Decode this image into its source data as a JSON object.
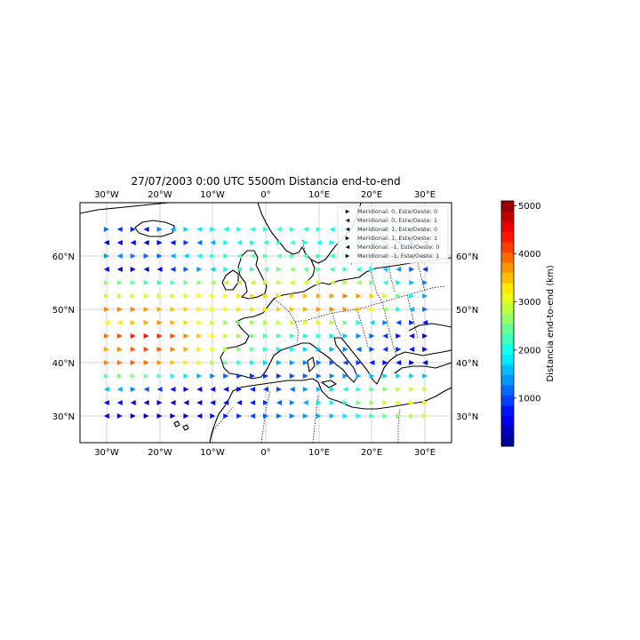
{
  "title": "27/07/2003 0:00 UTC  5500m Distancia end-to-end",
  "lon_ticks": [
    "30°W",
    "20°W",
    "10°W",
    "0°",
    "10°E",
    "20°E",
    "30°E"
  ],
  "lat_ticks": [
    "60°N",
    "50°N",
    "40°N",
    "30°N"
  ],
  "legend": [
    {
      "label": "Meridional: 0, Este/Oeste: 0",
      "marker": "right"
    },
    {
      "label": "Meridional: 0, Este/Oeste: 1",
      "marker": "left"
    },
    {
      "label": "Meridional: 1, Este/Oeste: 0",
      "marker": "left"
    },
    {
      "label": "Meridional: 1, Este/Oeste: 1",
      "marker": "right"
    },
    {
      "label": "Meridional: -1, Este/Oeste: 0",
      "marker": "left"
    },
    {
      "label": "Meridional: -1, Este/Oeste: 1",
      "marker": "right"
    }
  ],
  "colorbar": {
    "label": "Distancia end-to-end (km)",
    "ticks": [
      "1000",
      "2000",
      "3000",
      "4000",
      "5000"
    ],
    "range": [
      0,
      5100
    ],
    "colormap": "jet"
  },
  "extent": {
    "lon": [
      -35,
      35
    ],
    "lat": [
      25,
      70
    ]
  },
  "chart_data": {
    "type": "scatter",
    "marker": "triangle",
    "lon": [
      -30,
      -27.5,
      -25,
      -22.5,
      -20,
      -17.5,
      -15,
      -12.5,
      -10,
      -7.5,
      -5,
      -2.5,
      0,
      2.5,
      5,
      7.5,
      10,
      12.5,
      15,
      17.5,
      20,
      22.5,
      25,
      27.5,
      30
    ],
    "lat": [
      65,
      62.5,
      60,
      57.5,
      55,
      52.5,
      50,
      47.5,
      45,
      42.5,
      40,
      37.5,
      35,
      32.5,
      30
    ],
    "distance_km": [
      [
        1200,
        900,
        800,
        700,
        1300,
        1500,
        1700,
        1800,
        1900,
        2000,
        2100,
        2150,
        2200,
        2200,
        2200,
        2150,
        2100,
        2000,
        2000,
        1900,
        1800,
        1700,
        1600,
        1400,
        1300
      ],
      [
        300,
        500,
        400,
        300,
        500,
        700,
        900,
        1200,
        1500,
        1900,
        2000,
        2100,
        2200,
        2200,
        2200,
        2100,
        2000,
        1900,
        1800,
        1700,
        1600,
        1500,
        1300,
        1100,
        900
      ],
      [
        1400,
        1300,
        1200,
        1100,
        1200,
        1500,
        1700,
        1900,
        2100,
        2200,
        2300,
        2400,
        2400,
        2400,
        2300,
        2300,
        2200,
        2100,
        2000,
        1800,
        1600,
        1400,
        1200,
        1000,
        900
      ],
      [
        600,
        500,
        400,
        500,
        600,
        900,
        1100,
        1400,
        1700,
        2000,
        2200,
        2300,
        2400,
        2500,
        2600,
        2500,
        2400,
        2300,
        2200,
        2100,
        1900,
        1700,
        1400,
        1100,
        900
      ],
      [
        2600,
        2500,
        2400,
        2300,
        2200,
        2300,
        2500,
        2600,
        2700,
        2800,
        2900,
        2900,
        2900,
        2900,
        3000,
        3000,
        3000,
        2900,
        2800,
        2700,
        2500,
        2200,
        1900,
        1600,
        1300
      ],
      [
        2900,
        2900,
        2950,
        3000,
        3000,
        3000,
        3050,
        3100,
        3100,
        3200,
        3300,
        3300,
        3300,
        3400,
        3400,
        3500,
        3600,
        3700,
        3800,
        3700,
        3400,
        3000,
        2500,
        1900,
        1500
      ],
      [
        3800,
        3800,
        3800,
        3700,
        3600,
        3500,
        3400,
        3300,
        3200,
        3200,
        3300,
        3300,
        3300,
        3400,
        3500,
        3600,
        3700,
        3800,
        3700,
        3500,
        3200,
        2700,
        2000,
        1500,
        1200
      ],
      [
        3100,
        3300,
        3500,
        3600,
        3700,
        3600,
        3400,
        3100,
        2900,
        2700,
        2600,
        2700,
        2800,
        2900,
        3000,
        3100,
        3000,
        2800,
        2500,
        2100,
        1700,
        1300,
        1000,
        800,
        700
      ],
      [
        3900,
        4100,
        4300,
        4400,
        4300,
        4100,
        3800,
        3500,
        3200,
        2900,
        2700,
        2500,
        2400,
        2300,
        2200,
        2100,
        2000,
        1800,
        1600,
        1300,
        1100,
        900,
        700,
        600,
        500
      ],
      [
        3600,
        3800,
        4000,
        4100,
        4000,
        3800,
        3600,
        3300,
        3100,
        2800,
        2600,
        2400,
        2200,
        2000,
        1900,
        1700,
        1600,
        1500,
        1300,
        1100,
        1000,
        900,
        800,
        700,
        600
      ],
      [
        3800,
        3900,
        4000,
        3900,
        3700,
        3500,
        3300,
        3100,
        2800,
        2500,
        2200,
        1900,
        1700,
        1500,
        1400,
        1300,
        1200,
        1100,
        1000,
        900,
        800,
        700,
        700,
        600,
        600
      ],
      [
        2400,
        2500,
        2600,
        2500,
        2300,
        2000,
        1800,
        1500,
        1300,
        1100,
        1000,
        900,
        900,
        900,
        1000,
        1100,
        1200,
        1300,
        1400,
        1500,
        1600,
        1700,
        1700,
        1700,
        1600
      ],
      [
        1600,
        1500,
        1300,
        1100,
        900,
        700,
        600,
        500,
        500,
        600,
        700,
        800,
        900,
        1000,
        1200,
        1400,
        1600,
        1800,
        2000,
        2200,
        2400,
        2600,
        2800,
        2900,
        3000
      ],
      [
        700,
        600,
        500,
        400,
        300,
        300,
        300,
        400,
        500,
        600,
        700,
        800,
        900,
        1100,
        1300,
        1500,
        1800,
        2000,
        2200,
        2500,
        2700,
        2900,
        3000,
        3100,
        3200
      ],
      [
        600,
        500,
        400,
        300,
        300,
        400,
        500,
        600,
        700,
        800,
        900,
        1000,
        1100,
        1200,
        1300,
        1400,
        1500,
        1600,
        1800,
        2000,
        2200,
        2400,
        2600,
        2800,
        3000
      ]
    ],
    "direction": [
      [
        "right",
        "left",
        "right",
        "left",
        "right",
        "left",
        "right",
        "left",
        "right",
        "left",
        "right",
        "left",
        "right",
        "left",
        "right",
        "left",
        "right",
        "left",
        "right",
        "left",
        "right",
        "left",
        "right",
        "left",
        "right"
      ],
      [
        "left",
        "left",
        "left",
        "left",
        "right",
        "left",
        "right",
        "left",
        "left",
        "right",
        "left",
        "right",
        "left",
        "right",
        "left",
        "right",
        "left",
        "right",
        "left",
        "right",
        "left",
        "right",
        "left",
        "right",
        "left"
      ],
      [
        "right",
        "left",
        "right",
        "right",
        "right",
        "left",
        "left",
        "left",
        "right",
        "right",
        "left",
        "left",
        "right",
        "left",
        "right",
        "left",
        "right",
        "left",
        "right",
        "left",
        "right",
        "left",
        "right",
        "left",
        "right"
      ],
      [
        "left",
        "left",
        "right",
        "left",
        "left",
        "left",
        "right",
        "right",
        "left",
        "right",
        "left",
        "right",
        "left",
        "right",
        "left",
        "left",
        "right",
        "left",
        "right",
        "left",
        "right",
        "left",
        "left",
        "right",
        "left"
      ],
      [
        "right",
        "right",
        "right",
        "right",
        "right",
        "right",
        "right",
        "right",
        "left",
        "left",
        "left",
        "left",
        "right",
        "right",
        "left",
        "left",
        "right",
        "left",
        "right",
        "left",
        "right",
        "left",
        "right",
        "right",
        "right"
      ],
      [
        "right",
        "right",
        "right",
        "right",
        "right",
        "right",
        "right",
        "right",
        "right",
        "right",
        "right",
        "right",
        "right",
        "right",
        "right",
        "right",
        "right",
        "right",
        "right",
        "right",
        "right",
        "right",
        "right",
        "right",
        "right"
      ],
      [
        "right",
        "right",
        "right",
        "right",
        "right",
        "right",
        "right",
        "right",
        "right",
        "right",
        "right",
        "right",
        "right",
        "right",
        "right",
        "right",
        "right",
        "right",
        "right",
        "right",
        "right",
        "left",
        "right",
        "left",
        "right"
      ],
      [
        "left",
        "left",
        "right",
        "right",
        "right",
        "right",
        "right",
        "right",
        "right",
        "right",
        "right",
        "right",
        "right",
        "right",
        "right",
        "right",
        "right",
        "right",
        "right",
        "right",
        "left",
        "right",
        "left",
        "right",
        "left"
      ],
      [
        "right",
        "right",
        "right",
        "right",
        "right",
        "right",
        "right",
        "right",
        "right",
        "right",
        "right",
        "right",
        "right",
        "right",
        "right",
        "right",
        "right",
        "right",
        "right",
        "right",
        "right",
        "left",
        "right",
        "left",
        "right"
      ],
      [
        "right",
        "right",
        "right",
        "right",
        "right",
        "right",
        "right",
        "right",
        "right",
        "right",
        "right",
        "right",
        "right",
        "right",
        "right",
        "right",
        "right",
        "right",
        "right",
        "left",
        "right",
        "left",
        "right",
        "left",
        "right"
      ],
      [
        "right",
        "right",
        "right",
        "right",
        "right",
        "right",
        "right",
        "right",
        "right",
        "right",
        "right",
        "right",
        "right",
        "right",
        "right",
        "right",
        "right",
        "right",
        "left",
        "right",
        "left",
        "right",
        "left",
        "right",
        "left"
      ],
      [
        "right",
        "right",
        "right",
        "right",
        "right",
        "right",
        "right",
        "right",
        "right",
        "right",
        "right",
        "right",
        "right",
        "right",
        "right",
        "right",
        "right",
        "right",
        "right",
        "right",
        "right",
        "right",
        "right",
        "right",
        "right"
      ],
      [
        "left",
        "left",
        "right",
        "left",
        "left",
        "left",
        "right",
        "left",
        "left",
        "left",
        "right",
        "left",
        "left",
        "right",
        "left",
        "right",
        "right",
        "right",
        "left",
        "right",
        "right",
        "right",
        "right",
        "right",
        "right"
      ],
      [
        "left",
        "left",
        "left",
        "left",
        "right",
        "left",
        "left",
        "left",
        "left",
        "left",
        "left",
        "left",
        "right",
        "left",
        "right",
        "left",
        "right",
        "right",
        "right",
        "right",
        "right",
        "right",
        "right",
        "right",
        "right"
      ],
      [
        "left",
        "right",
        "right",
        "right",
        "right",
        "right",
        "right",
        "left",
        "right",
        "right",
        "right",
        "left",
        "right",
        "right",
        "right",
        "right",
        "right",
        "right",
        "right",
        "right",
        "right",
        "right",
        "right",
        "right",
        "right"
      ]
    ]
  }
}
